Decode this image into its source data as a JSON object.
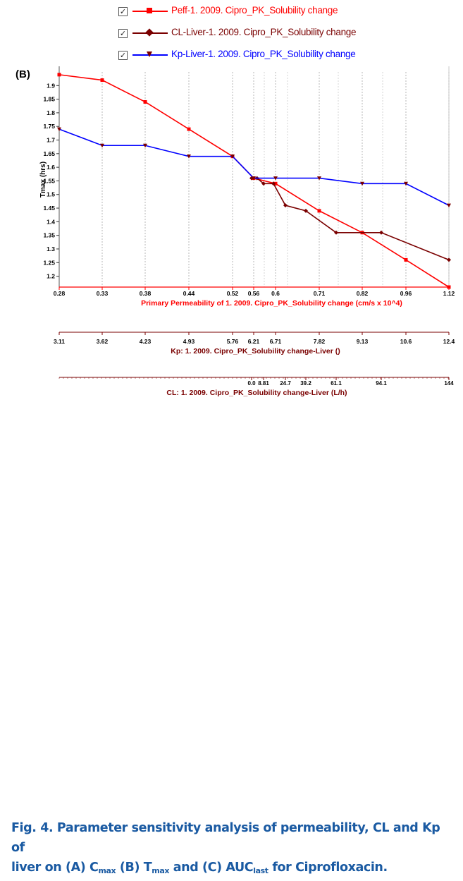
{
  "panel_label": "(B)",
  "legend": {
    "checkbox_mark": "✓",
    "items": [
      {
        "label": "Peff-1. 2009. Cipro_PK_Solubility change",
        "color": "#ff0000",
        "marker": "square"
      },
      {
        "label": "CL-Liver-1. 2009. Cipro_PK_Solubility change",
        "color": "#7a0000",
        "marker": "diamond"
      },
      {
        "label": "Kp-Liver-1. 2009. Cipro_PK_Solubility change",
        "color": "#0000ff",
        "marker": "triangle-down"
      }
    ]
  },
  "chart_data": {
    "type": "line",
    "ylabel": "Tmax (hrs)",
    "ylim": [
      1.16,
      1.95
    ],
    "yticks": [
      1.2,
      1.25,
      1.3,
      1.35,
      1.4,
      1.45,
      1.5,
      1.55,
      1.6,
      1.65,
      1.7,
      1.75,
      1.8,
      1.85,
      1.9
    ],
    "grid": "vertical dotted at x ticks",
    "x_axes": [
      {
        "label": "Primary Permeability of 1. 2009. Cipro_PK_Solubility change (cm/s x 10^4)",
        "color": "#ff0000",
        "ticks": [
          "0.28",
          "0.33",
          "0.38",
          "0.44",
          "0.52",
          "0.56",
          "0.6",
          "0.71",
          "0.82",
          "0.96",
          "1.12"
        ]
      },
      {
        "label": "Kp: 1. 2009. Cipro_PK_Solubility change-Liver ()",
        "color": "#7a0000",
        "ticks": [
          "3.11",
          "3.62",
          "4.23",
          "4.93",
          "5.76",
          "6.21",
          "6.71",
          "7.82",
          "9.13",
          "10.6",
          "12.4"
        ]
      },
      {
        "label": "CL: 1. 2009. Cipro_PK_Solubility change-Liver (L/h)",
        "color": "#7a0000",
        "ticks": [
          "0.0",
          "8.81",
          "24.7",
          "39.2",
          "61.1",
          "94.1",
          "144"
        ]
      }
    ],
    "series": [
      {
        "name": "Peff-1. 2009. Cipro_PK_Solubility change",
        "x_axis": "Primary Permeability (cm/s x 10^4)",
        "x": [
          0.28,
          0.33,
          0.38,
          0.44,
          0.52,
          0.56,
          0.6,
          0.71,
          0.82,
          0.96,
          1.12
        ],
        "y": [
          1.94,
          1.92,
          1.84,
          1.74,
          1.64,
          1.56,
          1.54,
          1.44,
          1.36,
          1.26,
          1.16
        ]
      },
      {
        "name": "CL-Liver-1. 2009. Cipro_PK_Solubility change",
        "x_axis": "CL Liver (L/h)",
        "x": [
          0.0,
          4.0,
          8.81,
          16.0,
          24.7,
          39.2,
          61.1,
          94.1,
          144
        ],
        "y": [
          1.56,
          1.56,
          1.54,
          1.54,
          1.46,
          1.44,
          1.36,
          1.36,
          1.26
        ]
      },
      {
        "name": "Kp-Liver-1. 2009. Cipro_PK_Solubility change",
        "x_axis": "Kp Liver ()",
        "x": [
          3.11,
          3.62,
          4.23,
          4.93,
          5.76,
          6.21,
          6.71,
          7.82,
          9.13,
          10.6,
          12.4
        ],
        "y": [
          1.74,
          1.68,
          1.68,
          1.64,
          1.64,
          1.56,
          1.56,
          1.56,
          1.54,
          1.54,
          1.46
        ]
      }
    ]
  },
  "caption": {
    "line1": "Fig. 4. Parameter sensitivity analysis of permeability, CL and Kp of",
    "line2_a": "liver on (A) C",
    "sub_a": "max",
    "line2_b": " (B) T",
    "sub_b": "max",
    "line2_c": " and (C) AUC",
    "sub_c": "last",
    "line2_d": " for Ciprofloxacin."
  }
}
